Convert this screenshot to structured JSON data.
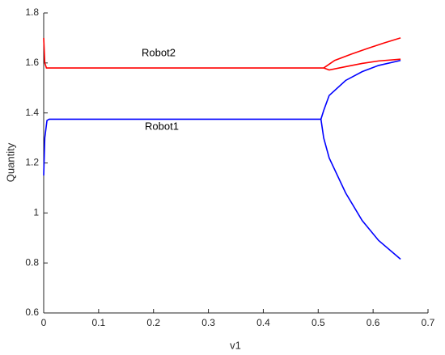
{
  "chart_data": {
    "type": "line",
    "x_label": "v1",
    "y_label": "Quantity",
    "annotations": [
      "Robot2",
      "Robot1"
    ],
    "series": [
      {
        "name": "Robot2",
        "color": "#ff0000",
        "x": [
          0,
          0.002,
          0.005,
          0.01,
          0.1,
          0.2,
          0.3,
          0.4,
          0.5,
          0.51,
          0.53,
          0.56,
          0.59,
          0.62,
          0.65,
          0.65,
          0.51,
          0.52,
          0.55,
          0.58,
          0.61,
          0.65
        ],
        "values": [
          1.7,
          1.6,
          1.58,
          1.58,
          1.58,
          1.58,
          1.58,
          1.58,
          1.58,
          1.58,
          1.61,
          1.635,
          1.658,
          1.68,
          1.7,
          null,
          1.58,
          1.572,
          1.585,
          1.598,
          1.608,
          1.615
        ]
      },
      {
        "name": "Robot1",
        "color": "#0000ff",
        "x": [
          0,
          0.002,
          0.006,
          0.01,
          0.1,
          0.2,
          0.3,
          0.4,
          0.505,
          0.51,
          0.52,
          0.55,
          0.58,
          0.61,
          0.65,
          0.65,
          0.505,
          0.51,
          0.52,
          0.55,
          0.58,
          0.61,
          0.65
        ],
        "values": [
          1.15,
          1.3,
          1.37,
          1.375,
          1.375,
          1.375,
          1.375,
          1.375,
          1.375,
          1.41,
          1.47,
          1.53,
          1.565,
          1.59,
          1.61,
          null,
          1.375,
          1.3,
          1.22,
          1.08,
          0.97,
          0.89,
          0.815
        ]
      }
    ],
    "xlim": [
      0,
      0.7
    ],
    "xticks": [
      0,
      0.1,
      0.2,
      0.3,
      0.4,
      0.5,
      0.6,
      0.7
    ],
    "ylim": [
      0.6,
      1.8
    ],
    "yticks": [
      0.6,
      0.8,
      1,
      1.2,
      1.4,
      1.6,
      1.8
    ],
    "grid": false
  }
}
